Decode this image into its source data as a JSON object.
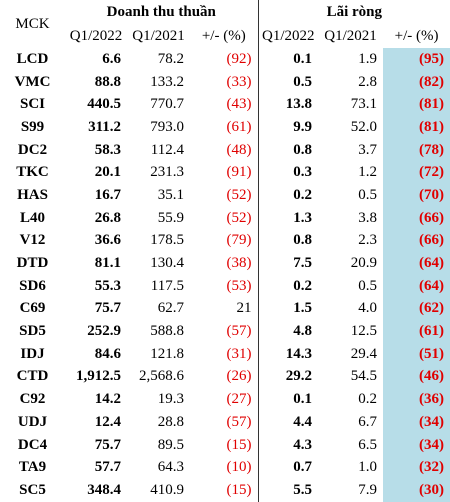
{
  "header": {
    "key": "MCK",
    "groups": [
      "Doanh thu thuần",
      "Lãi ròng"
    ],
    "columns": [
      "Q1/2022",
      "Q1/2021",
      "+/- (%)",
      "Q1/2022",
      "Q1/2021",
      "+/- (%)"
    ]
  },
  "table": {
    "rows": [
      [
        "LCD",
        "6.6",
        "78.2",
        "(92)",
        "0.1",
        "1.9",
        "(95)"
      ],
      [
        "VMC",
        "88.8",
        "133.2",
        "(33)",
        "0.5",
        "2.8",
        "(82)"
      ],
      [
        "SCI",
        "440.5",
        "770.7",
        "(43)",
        "13.8",
        "73.1",
        "(81)"
      ],
      [
        "S99",
        "311.2",
        "793.0",
        "(61)",
        "9.9",
        "52.0",
        "(81)"
      ],
      [
        "DC2",
        "58.3",
        "112.4",
        "(48)",
        "0.8",
        "3.7",
        "(78)"
      ],
      [
        "TKC",
        "20.1",
        "231.3",
        "(91)",
        "0.3",
        "1.2",
        "(72)"
      ],
      [
        "HAS",
        "16.7",
        "35.1",
        "(52)",
        "0.2",
        "0.5",
        "(70)"
      ],
      [
        "L40",
        "26.8",
        "55.9",
        "(52)",
        "1.3",
        "3.8",
        "(66)"
      ],
      [
        "V12",
        "36.6",
        "178.5",
        "(79)",
        "0.8",
        "2.3",
        "(66)"
      ],
      [
        "DTD",
        "81.1",
        "130.4",
        "(38)",
        "7.5",
        "20.9",
        "(64)"
      ],
      [
        "SD6",
        "55.3",
        "117.5",
        "(53)",
        "0.2",
        "0.5",
        "(64)"
      ],
      [
        "C69",
        "75.7",
        "62.7",
        "21",
        "1.5",
        "4.0",
        "(62)"
      ],
      [
        "SD5",
        "252.9",
        "588.8",
        "(57)",
        "4.8",
        "12.5",
        "(61)"
      ],
      [
        "IDJ",
        "84.6",
        "121.8",
        "(31)",
        "14.3",
        "29.4",
        "(51)"
      ],
      [
        "CTD",
        "1,912.5",
        "2,568.6",
        "(26)",
        "29.2",
        "54.5",
        "(46)"
      ],
      [
        "C92",
        "14.2",
        "19.3",
        "(27)",
        "0.1",
        "0.2",
        "(36)"
      ],
      [
        "UDJ",
        "12.4",
        "28.8",
        "(57)",
        "4.4",
        "6.7",
        "(34)"
      ],
      [
        "DC4",
        "75.7",
        "89.5",
        "(15)",
        "4.3",
        "6.5",
        "(34)"
      ],
      [
        "TA9",
        "57.7",
        "64.3",
        "(10)",
        "0.7",
        "1.0",
        "(32)"
      ],
      [
        "SC5",
        "348.4",
        "410.9",
        "(15)",
        "5.5",
        "7.9",
        "(30)"
      ]
    ]
  }
}
